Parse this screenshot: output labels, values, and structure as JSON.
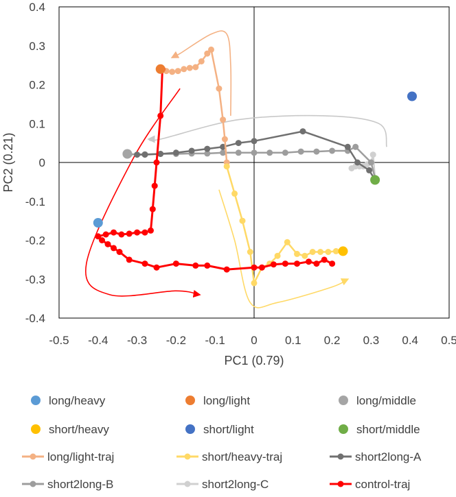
{
  "chart_data": {
    "type": "scatter",
    "title": "",
    "xlabel": "PC1 (0.79)",
    "ylabel": "PC2 (0.21)",
    "xlim": [
      -0.5,
      0.5
    ],
    "ylim": [
      -0.4,
      0.4
    ],
    "x_ticks": [
      -0.5,
      -0.4,
      -0.3,
      -0.2,
      -0.1,
      0,
      0.1,
      0.2,
      0.3,
      0.4,
      0.5
    ],
    "x_tick_labels": [
      "-0.5",
      "-0.4",
      "-0.3",
      "-0.2",
      "-0.1",
      "0",
      "0.1",
      "0.2",
      "0.3",
      "0.4",
      "0.5"
    ],
    "y_ticks": [
      0.4,
      0.3,
      0.2,
      0.1,
      0,
      -0.1,
      -0.2,
      -0.3,
      -0.4
    ],
    "y_tick_labels": [
      "0.4",
      "0.3",
      "0.2",
      "0.1",
      "0",
      "-0.1",
      "-0.2",
      "-0.3",
      "-0.4"
    ],
    "grid": false,
    "legend_position": "bottom",
    "series": [
      {
        "name": "long/light-traj",
        "kind": "line",
        "color": "#F4B183",
        "points": [
          [
            -0.24,
            0.24
          ],
          [
            -0.225,
            0.235
          ],
          [
            -0.21,
            0.233
          ],
          [
            -0.195,
            0.235
          ],
          [
            -0.18,
            0.24
          ],
          [
            -0.165,
            0.243
          ],
          [
            -0.15,
            0.245
          ],
          [
            -0.135,
            0.26
          ],
          [
            -0.12,
            0.28
          ],
          [
            -0.11,
            0.29
          ],
          [
            -0.09,
            0.19
          ],
          [
            -0.08,
            0.11
          ],
          [
            -0.075,
            0.06
          ],
          [
            -0.07,
            0.0
          ]
        ]
      },
      {
        "name": "short/heavy-traj",
        "kind": "line",
        "color": "#FFD966",
        "points": [
          [
            -0.07,
            -0.01
          ],
          [
            -0.05,
            -0.08
          ],
          [
            -0.03,
            -0.15
          ],
          [
            -0.01,
            -0.23
          ],
          [
            0.0,
            -0.31
          ],
          [
            0.02,
            -0.27
          ],
          [
            0.04,
            -0.26
          ],
          [
            0.06,
            -0.24
          ],
          [
            0.085,
            -0.205
          ],
          [
            0.11,
            -0.235
          ],
          [
            0.13,
            -0.24
          ],
          [
            0.15,
            -0.23
          ],
          [
            0.17,
            -0.23
          ],
          [
            0.19,
            -0.23
          ],
          [
            0.21,
            -0.228
          ],
          [
            0.228,
            -0.228
          ]
        ]
      },
      {
        "name": "short2long-A",
        "kind": "line",
        "color": "#707070",
        "points": [
          [
            0.31,
            -0.045
          ],
          [
            0.295,
            -0.02
          ],
          [
            0.265,
            0.0
          ],
          [
            0.24,
            0.04
          ],
          [
            0.125,
            0.08
          ],
          [
            0.0,
            0.055
          ],
          [
            -0.04,
            0.05
          ],
          [
            -0.08,
            0.04
          ],
          [
            -0.12,
            0.035
          ],
          [
            -0.16,
            0.03
          ],
          [
            -0.2,
            0.025
          ],
          [
            -0.24,
            0.022
          ],
          [
            -0.28,
            0.02
          ],
          [
            -0.3,
            0.02
          ]
        ]
      },
      {
        "name": "short2long-B",
        "kind": "line",
        "color": "#9D9D9D",
        "points": [
          [
            0.31,
            -0.04
          ],
          [
            0.3,
            0.0
          ],
          [
            0.26,
            0.04
          ],
          [
            0.24,
            0.03
          ],
          [
            0.2,
            0.03
          ],
          [
            0.16,
            0.028
          ],
          [
            0.12,
            0.028
          ],
          [
            0.08,
            0.025
          ],
          [
            0.04,
            0.025
          ],
          [
            0.0,
            0.025
          ],
          [
            -0.04,
            0.025
          ],
          [
            -0.08,
            0.025
          ],
          [
            -0.12,
            0.023
          ],
          [
            -0.16,
            0.023
          ],
          [
            -0.2,
            0.022
          ],
          [
            -0.24,
            0.022
          ],
          [
            -0.28,
            0.021
          ],
          [
            -0.32,
            0.021
          ]
        ]
      },
      {
        "name": "short2long-C",
        "kind": "line",
        "color": "#D0D0D0",
        "points": [
          [
            0.31,
            -0.04
          ],
          [
            0.305,
            0.02
          ],
          [
            0.3,
            0.0
          ],
          [
            0.29,
            -0.005
          ],
          [
            0.28,
            -0.01
          ],
          [
            0.27,
            -0.01
          ],
          [
            0.26,
            -0.01
          ],
          [
            0.25,
            -0.015
          ]
        ]
      },
      {
        "name": "control-traj",
        "kind": "line",
        "color": "#FF0000",
        "points": [
          [
            -0.235,
            0.24
          ],
          [
            -0.24,
            0.12
          ],
          [
            -0.25,
            0.0
          ],
          [
            -0.255,
            -0.06
          ],
          [
            -0.26,
            -0.12
          ],
          [
            -0.265,
            -0.175
          ],
          [
            -0.28,
            -0.18
          ],
          [
            -0.3,
            -0.18
          ],
          [
            -0.32,
            -0.183
          ],
          [
            -0.34,
            -0.185
          ],
          [
            -0.36,
            -0.18
          ],
          [
            -0.38,
            -0.185
          ],
          [
            -0.4,
            -0.19
          ],
          [
            -0.39,
            -0.2
          ],
          [
            -0.375,
            -0.21
          ],
          [
            -0.36,
            -0.22
          ],
          [
            -0.345,
            -0.23
          ],
          [
            -0.32,
            -0.25
          ],
          [
            -0.28,
            -0.26
          ],
          [
            -0.25,
            -0.27
          ],
          [
            -0.2,
            -0.26
          ],
          [
            -0.15,
            -0.265
          ],
          [
            -0.12,
            -0.265
          ],
          [
            -0.07,
            -0.275
          ],
          [
            0.0,
            -0.27
          ],
          [
            0.02,
            -0.27
          ],
          [
            0.05,
            -0.262
          ],
          [
            0.08,
            -0.26
          ],
          [
            0.11,
            -0.26
          ],
          [
            0.14,
            -0.255
          ],
          [
            0.16,
            -0.26
          ],
          [
            0.18,
            -0.25
          ],
          [
            0.2,
            -0.26
          ]
        ]
      }
    ],
    "markers": [
      {
        "name": "long/heavy",
        "color": "#5B9BD5",
        "x": -0.4,
        "y": -0.155
      },
      {
        "name": "long/light",
        "color": "#ED7D31",
        "x": -0.24,
        "y": 0.24
      },
      {
        "name": "long/middle",
        "color": "#A5A5A5",
        "x": -0.325,
        "y": 0.022
      },
      {
        "name": "short/heavy",
        "color": "#FFC000",
        "x": 0.228,
        "y": -0.228
      },
      {
        "name": "short/light",
        "color": "#4472C4",
        "x": 0.405,
        "y": 0.17
      },
      {
        "name": "short/middle",
        "color": "#70AD47",
        "x": 0.31,
        "y": -0.045
      }
    ],
    "annotation_arrows": [
      {
        "name": "long-light-arrow",
        "color": "#F4B183",
        "points": [
          [
            -0.06,
            0.12
          ],
          [
            -0.06,
            0.25
          ],
          [
            -0.07,
            0.33
          ],
          [
            -0.11,
            0.33
          ],
          [
            -0.19,
            0.28
          ],
          [
            -0.21,
            0.27
          ]
        ]
      },
      {
        "name": "short2long-arrow",
        "color": "#C8C8C8",
        "points": [
          [
            0.34,
            0.04
          ],
          [
            0.32,
            0.1
          ],
          [
            0.18,
            0.12
          ],
          [
            -0.04,
            0.11
          ],
          [
            -0.24,
            0.06
          ],
          [
            -0.27,
            0.06
          ]
        ]
      },
      {
        "name": "short-heavy-arrow",
        "color": "#FFD966",
        "points": [
          [
            -0.09,
            -0.07
          ],
          [
            -0.05,
            -0.2
          ],
          [
            -0.01,
            -0.36
          ],
          [
            0.06,
            -0.36
          ],
          [
            0.2,
            -0.32
          ],
          [
            0.24,
            -0.3
          ]
        ]
      },
      {
        "name": "control-arrow",
        "color": "#FF0000",
        "points": [
          [
            -0.19,
            0.19
          ],
          [
            -0.31,
            0.01
          ],
          [
            -0.43,
            -0.26
          ],
          [
            -0.37,
            -0.34
          ],
          [
            -0.2,
            -0.33
          ],
          [
            -0.14,
            -0.34
          ]
        ]
      }
    ],
    "legend": [
      {
        "label": "long/heavy",
        "type": "marker",
        "color": "#5B9BD5"
      },
      {
        "label": "long/light",
        "type": "marker",
        "color": "#ED7D31"
      },
      {
        "label": "long/middle",
        "type": "marker",
        "color": "#A5A5A5"
      },
      {
        "label": "short/heavy",
        "type": "marker",
        "color": "#FFC000"
      },
      {
        "label": "short/light",
        "type": "marker",
        "color": "#4472C4"
      },
      {
        "label": "short/middle",
        "type": "marker",
        "color": "#70AD47"
      },
      {
        "label": "long/light-traj",
        "type": "line",
        "color": "#F4B183"
      },
      {
        "label": "short/heavy-traj",
        "type": "line",
        "color": "#FFD966"
      },
      {
        "label": "short2long-A",
        "type": "line",
        "color": "#707070"
      },
      {
        "label": "short2long-B",
        "type": "line",
        "color": "#9D9D9D"
      },
      {
        "label": "short2long-C",
        "type": "line",
        "color": "#D0D0D0"
      },
      {
        "label": "control-traj",
        "type": "line",
        "color": "#FF0000"
      }
    ]
  }
}
